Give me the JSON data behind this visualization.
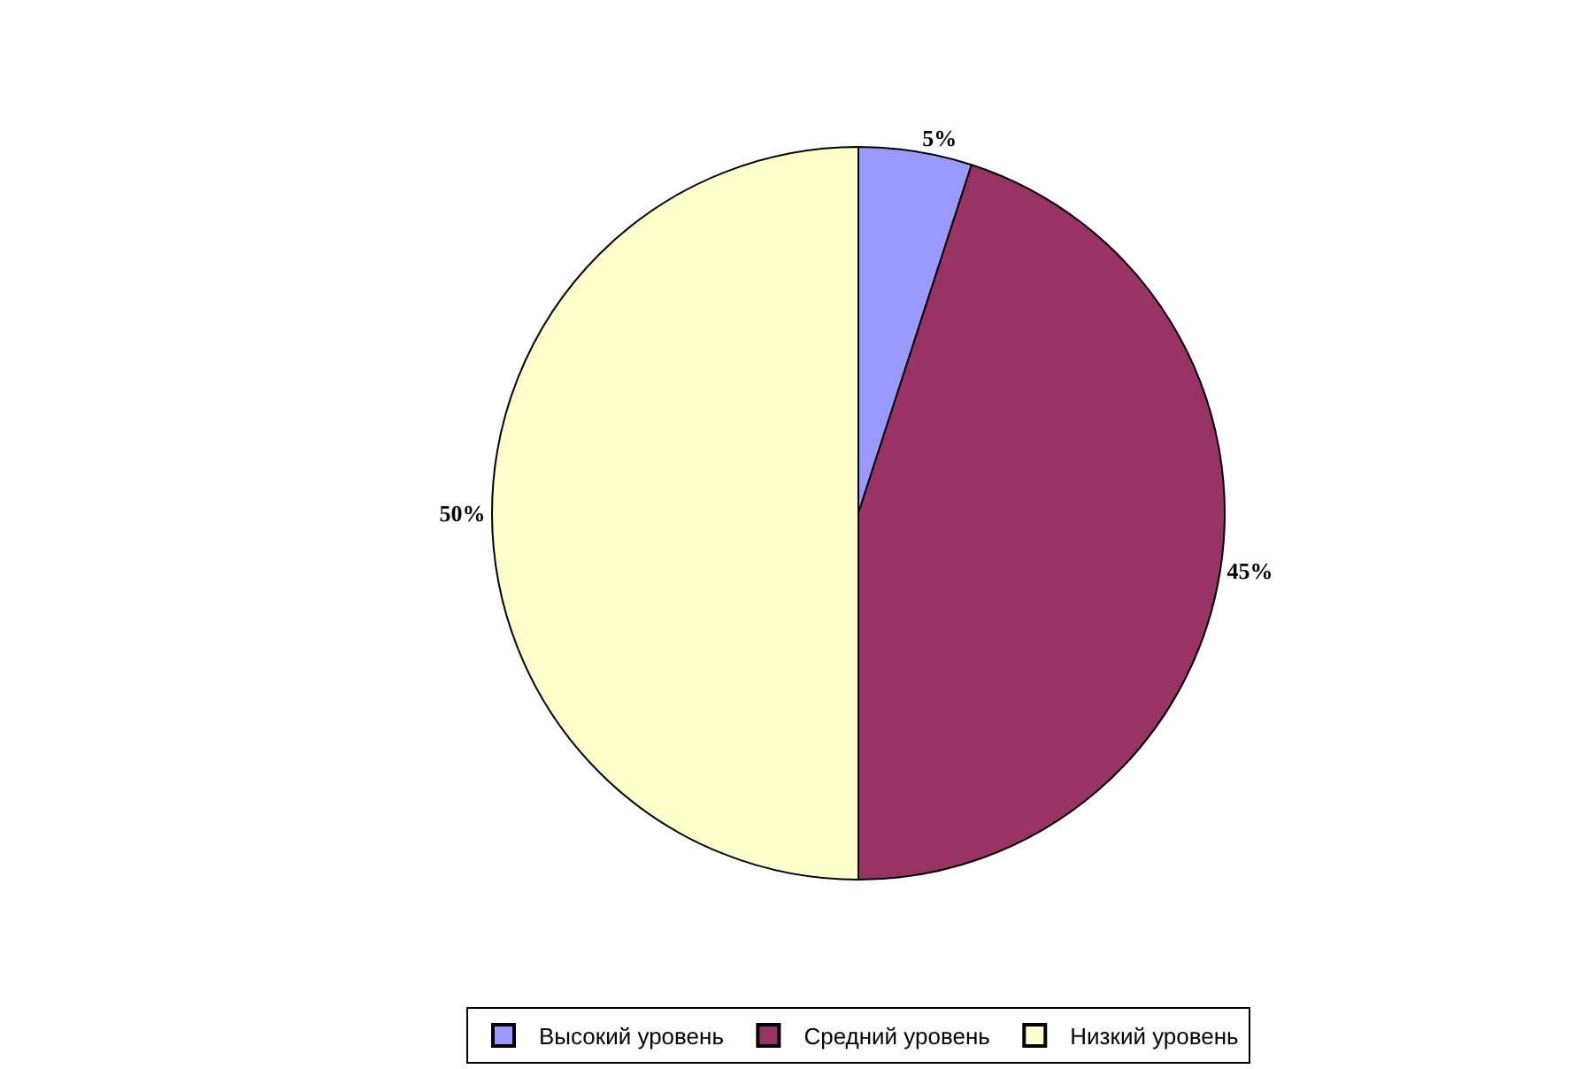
{
  "chart_data": {
    "type": "pie",
    "categories": [
      "Высокий уровень",
      "Средний уровень",
      "Низкий уровень"
    ],
    "values": [
      5,
      45,
      50
    ],
    "colors": [
      "#9999ff",
      "#993366",
      "#ffffcc"
    ],
    "value_labels": [
      "5%",
      "45%",
      "50%"
    ],
    "legend": "bottom"
  }
}
